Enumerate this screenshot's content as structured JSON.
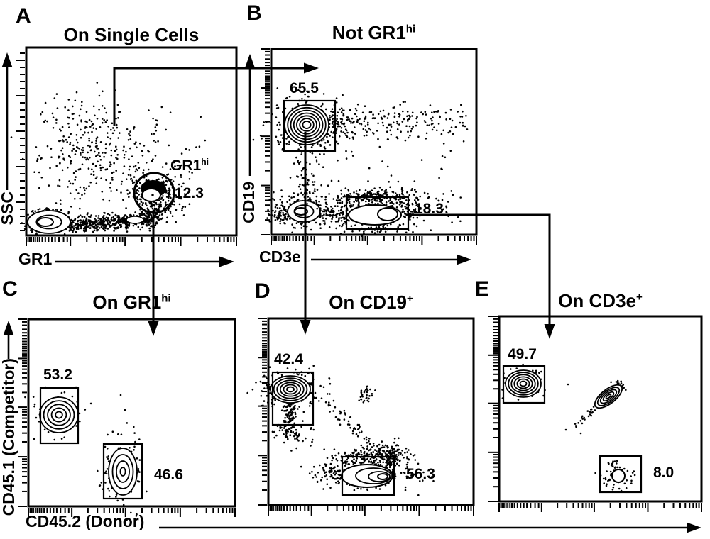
{
  "colors": {
    "ink": "#000000",
    "background": "#ffffff"
  },
  "panels": {
    "A": {
      "letter": "A",
      "title_main": "On Single Cells",
      "title_sup": "",
      "y_label": "SSC",
      "x_label": "GR1",
      "gate_label_main": "GR1",
      "gate_label_sup": "hi",
      "gate_value": "12.3"
    },
    "B": {
      "letter": "B",
      "title_main": "Not GR1",
      "title_sup": "hi",
      "y_label": "CD19",
      "x_label": "CD3e",
      "gate1_value": "65.5",
      "gate2_value": "18.3"
    },
    "C": {
      "letter": "C",
      "title_main": "On GR1",
      "title_sup": "hi",
      "gate1_value": "53.2",
      "gate2_value": "46.6"
    },
    "D": {
      "letter": "D",
      "title_main": "On CD19",
      "title_sup": "+",
      "gate1_value": "42.4",
      "gate2_value": "56.3"
    },
    "E": {
      "letter": "E",
      "title_main": "On CD3e",
      "title_sup": "+",
      "gate1_value": "49.7",
      "gate2_value": "8.0"
    }
  },
  "shared_axes": {
    "x_label": "CD45.2 (Donor)",
    "y_label": "CD45.1 (Competitor)"
  },
  "chart_data": [
    {
      "panel": "A",
      "type": "scatter",
      "title": "On Single Cells",
      "xlabel": "GR1",
      "ylabel": "SSC",
      "x_scale": "log",
      "y_scale": "linear",
      "parent_gate": "Single Cells",
      "gates": [
        {
          "name": "GR1hi",
          "shape": "circle",
          "percent": 12.3,
          "arrow_to_panel": "C"
        }
      ]
    },
    {
      "panel": "B",
      "type": "scatter",
      "title": "Not GR1hi",
      "xlabel": "CD3e",
      "ylabel": "CD19",
      "x_scale": "log",
      "y_scale": "log",
      "parent_gate": "Not GR1hi",
      "gates": [
        {
          "name": "CD19+",
          "shape": "rect",
          "percent": 65.5,
          "arrow_to_panel": "D"
        },
        {
          "name": "CD3e+",
          "shape": "rect",
          "percent": 18.3,
          "arrow_to_panel": "E"
        }
      ]
    },
    {
      "panel": "C",
      "type": "scatter",
      "title": "On GR1hi",
      "xlabel": "CD45.2 (Donor)",
      "ylabel": "CD45.1 (Competitor)",
      "x_scale": "log",
      "y_scale": "log",
      "parent_gate": "GR1hi",
      "gates": [
        {
          "name": "CD45.1 (Competitor)",
          "shape": "rect",
          "percent": 53.2
        },
        {
          "name": "CD45.2 (Donor)",
          "shape": "rect",
          "percent": 46.6
        }
      ]
    },
    {
      "panel": "D",
      "type": "scatter",
      "title": "On CD19+",
      "xlabel": "CD45.2 (Donor)",
      "ylabel": "CD45.1 (Competitor)",
      "x_scale": "log",
      "y_scale": "log",
      "parent_gate": "CD19+",
      "gates": [
        {
          "name": "CD45.1 (Competitor)",
          "shape": "rect",
          "percent": 42.4
        },
        {
          "name": "CD45.2 (Donor)",
          "shape": "rect",
          "percent": 56.3
        }
      ]
    },
    {
      "panel": "E",
      "type": "scatter",
      "title": "On CD3e+",
      "xlabel": "CD45.2 (Donor)",
      "ylabel": "CD45.1 (Competitor)",
      "x_scale": "log",
      "y_scale": "log",
      "parent_gate": "CD3e+",
      "gates": [
        {
          "name": "CD45.1 (Competitor)",
          "shape": "rect",
          "percent": 49.7
        },
        {
          "name": "CD45.2 (Donor)",
          "shape": "rect",
          "percent": 8.0
        }
      ]
    }
  ]
}
